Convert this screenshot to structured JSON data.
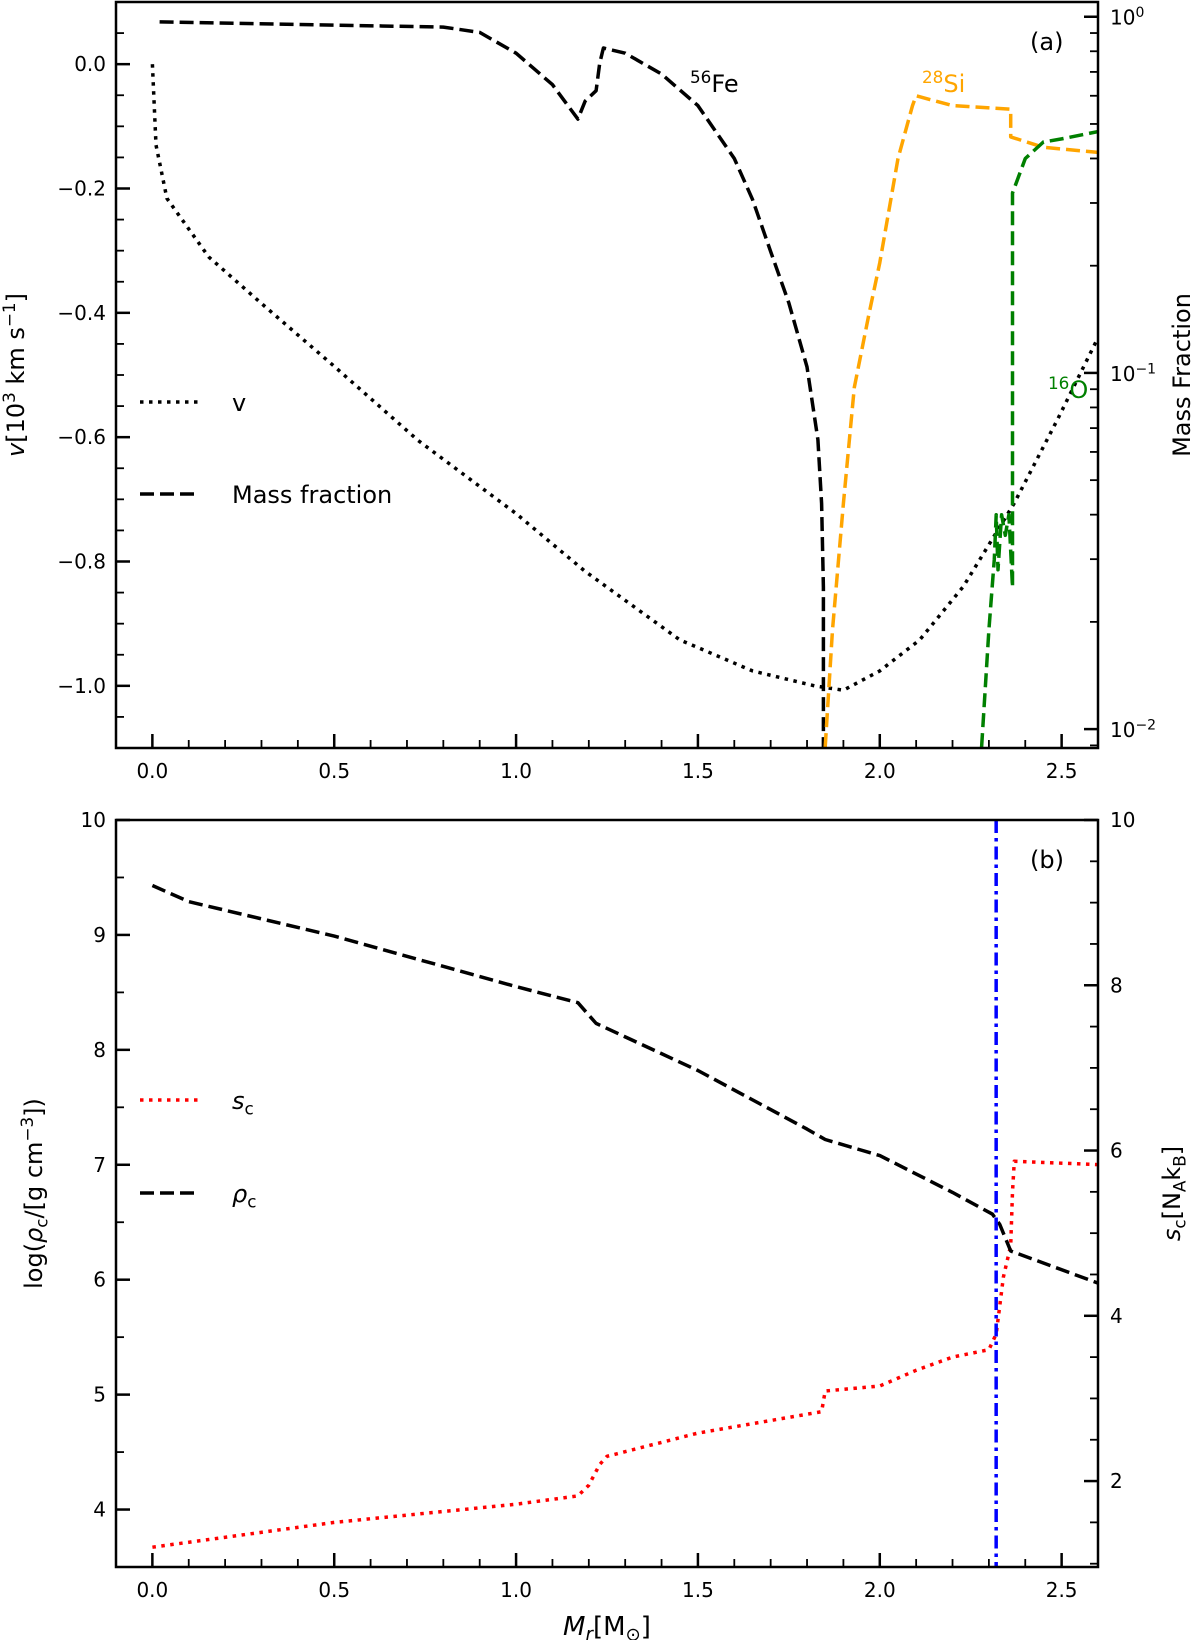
{
  "chart_data": [
    {
      "type": "line",
      "panel_label": "(a)",
      "xlim": [
        -0.1,
        2.6
      ],
      "x_ticks": [
        "0.0",
        "0.5",
        "1.0",
        "1.5",
        "2.0",
        "2.5"
      ],
      "ylim_left": [
        -1.1,
        0.1
      ],
      "y_ticks_left": [
        "0.0",
        "−0.2",
        "−0.4",
        "−0.6",
        "−0.8",
        "−1.0"
      ],
      "ylabel_left": [
        {
          "t": "v",
          "i": true
        },
        {
          "t": "[10"
        },
        {
          "t": "3",
          "sup": true
        },
        {
          "t": " km s"
        },
        {
          "t": "−1",
          "sup": true
        },
        {
          "t": "]"
        }
      ],
      "ylim_right": [
        0.00885,
        1.1
      ],
      "yscale_right": "log",
      "y_ticks_right": [
        [
          {
            "t": "10"
          },
          {
            "t": "0",
            "sup": true
          }
        ],
        [
          {
            "t": "10"
          },
          {
            "t": "−1",
            "sup": true
          }
        ],
        [
          {
            "t": "10"
          },
          {
            "t": "−2",
            "sup": true
          }
        ]
      ],
      "ylabel_right": [
        {
          "t": "Mass Fraction"
        }
      ],
      "legend": {
        "placement": "center-left",
        "entries": [
          {
            "label": "v",
            "style": "dotted",
            "color": "#000000"
          },
          {
            "label": "Mass fraction",
            "style": "dashed",
            "color": "#000000"
          }
        ]
      },
      "annotations": [
        {
          "parts": [
            {
              "t": "56",
              "sup": true
            },
            {
              "t": "Fe"
            }
          ],
          "color": "#000000"
        },
        {
          "parts": [
            {
              "t": "28",
              "sup": true
            },
            {
              "t": "Si"
            }
          ],
          "color": "#FFA500"
        },
        {
          "parts": [
            {
              "t": "16",
              "sup": true
            },
            {
              "t": "O"
            }
          ],
          "color": "#008000"
        }
      ],
      "series": [
        {
          "id": "v",
          "axis": "left",
          "style": "dotted",
          "color": "#000000",
          "points": [
            [
              0,
              0
            ],
            [
              0.01,
              -0.13
            ],
            [
              0.04,
              -0.216
            ],
            [
              0.155,
              -0.31
            ],
            [
              0.3,
              -0.385
            ],
            [
              0.5,
              -0.486
            ],
            [
              0.73,
              -0.605
            ],
            [
              1.0,
              -0.723
            ],
            [
              1.19,
              -0.816
            ],
            [
              1.45,
              -0.926
            ],
            [
              1.65,
              -0.976
            ],
            [
              1.82,
              -1.0
            ],
            [
              1.9,
              -1.007
            ],
            [
              2.0,
              -0.976
            ],
            [
              2.11,
              -0.926
            ],
            [
              2.23,
              -0.84
            ],
            [
              2.37,
              -0.706
            ],
            [
              2.49,
              -0.57
            ],
            [
              2.6,
              -0.44
            ]
          ]
        },
        {
          "id": "fe56",
          "axis": "right",
          "style": "dashed",
          "color": "#000000",
          "points": [
            [
              0.02,
              0.967
            ],
            [
              0.8,
              0.935
            ],
            [
              0.9,
              0.904
            ],
            [
              1.0,
              0.79
            ],
            [
              1.1,
              0.645
            ],
            [
              1.17,
              0.516
            ],
            [
              1.19,
              0.58
            ],
            [
              1.22,
              0.62
            ],
            [
              1.23,
              0.74
            ],
            [
              1.24,
              0.817
            ],
            [
              1.3,
              0.79
            ],
            [
              1.4,
              0.69
            ],
            [
              1.5,
              0.563
            ],
            [
              1.6,
              0.4
            ],
            [
              1.65,
              0.307
            ],
            [
              1.7,
              0.219
            ],
            [
              1.75,
              0.157
            ],
            [
              1.8,
              0.104
            ],
            [
              1.83,
              0.065
            ],
            [
              1.84,
              0.043
            ],
            [
              1.845,
              0.025
            ],
            [
              1.845,
              0.0089
            ]
          ]
        },
        {
          "id": "si28",
          "axis": "right",
          "style": "dashed",
          "color": "#FFA500",
          "points": [
            [
              1.85,
              0.0089
            ],
            [
              1.87,
              0.019
            ],
            [
              1.9,
              0.043
            ],
            [
              1.93,
              0.091
            ],
            [
              1.97,
              0.146
            ],
            [
              2.0,
              0.204
            ],
            [
              2.05,
              0.4
            ],
            [
              2.09,
              0.563
            ],
            [
              2.1,
              0.6
            ],
            [
              2.2,
              0.563
            ],
            [
              2.36,
              0.55
            ],
            [
              2.36,
              0.46
            ],
            [
              2.45,
              0.43
            ],
            [
              2.6,
              0.416
            ]
          ]
        },
        {
          "id": "o16",
          "axis": "right",
          "style": "dashed",
          "color": "#008000",
          "points": [
            [
              2.28,
              0.0089
            ],
            [
              2.3,
              0.019
            ],
            [
              2.315,
              0.03
            ],
            [
              2.32,
              0.04
            ],
            [
              2.325,
              0.028
            ],
            [
              2.335,
              0.04
            ],
            [
              2.345,
              0.035
            ],
            [
              2.355,
              0.04
            ],
            [
              2.365,
              0.025
            ],
            [
              2.365,
              0.32
            ],
            [
              2.4,
              0.4
            ],
            [
              2.45,
              0.445
            ],
            [
              2.5,
              0.454
            ],
            [
              2.6,
              0.476
            ]
          ]
        }
      ]
    },
    {
      "type": "line",
      "panel_label": "(b)",
      "xlim": [
        -0.1,
        2.6
      ],
      "x_ticks": [
        "0.0",
        "0.5",
        "1.0",
        "1.5",
        "2.0",
        "2.5"
      ],
      "xlabel": [
        {
          "t": "M",
          "i": true
        },
        {
          "t": "r",
          "i": true,
          "sub": true
        },
        {
          "t": "[M"
        },
        {
          "t": "⊙",
          "sub": true
        },
        {
          "t": "]"
        }
      ],
      "ylim_left": [
        3.5,
        10
      ],
      "y_ticks_left": [
        "4",
        "5",
        "6",
        "7",
        "8",
        "9",
        "10"
      ],
      "ylabel_left": [
        {
          "t": "log("
        },
        {
          "t": "ρ",
          "i": true
        },
        {
          "t": "c",
          "sub": true
        },
        {
          "t": "/[g cm"
        },
        {
          "t": "−3",
          "sup": true
        },
        {
          "t": "])"
        }
      ],
      "ylim_right": [
        0.96,
        10
      ],
      "y_ticks_right": [
        "2",
        "4",
        "6",
        "8",
        "10"
      ],
      "ylabel_right": [
        {
          "t": "s",
          "i": true
        },
        {
          "t": "c",
          "sub": true
        },
        {
          "t": "[N"
        },
        {
          "t": "A",
          "sub": true
        },
        {
          "t": "k"
        },
        {
          "t": "B",
          "sub": true
        },
        {
          "t": "]"
        }
      ],
      "legend": {
        "placement": "center-left",
        "entries": [
          {
            "parts": [
              {
                "t": "s",
                "i": true
              },
              {
                "t": "c",
                "sub": true
              }
            ],
            "style": "dotted",
            "color": "#FF0000"
          },
          {
            "parts": [
              {
                "t": "ρ",
                "i": true
              },
              {
                "t": "c",
                "sub": true
              }
            ],
            "style": "dashed",
            "color": "#000000"
          }
        ]
      },
      "vline": {
        "x": 2.32,
        "style": "dashdot",
        "color": "#0000FF"
      },
      "series": [
        {
          "id": "s_c",
          "axis": "right",
          "style": "dotted",
          "color": "#FF0000",
          "points": [
            [
              0,
              1.2
            ],
            [
              0.5,
              1.5
            ],
            [
              1.0,
              1.72
            ],
            [
              1.17,
              1.82
            ],
            [
              1.2,
              1.95
            ],
            [
              1.23,
              2.2
            ],
            [
              1.25,
              2.3
            ],
            [
              1.5,
              2.58
            ],
            [
              1.84,
              2.84
            ],
            [
              1.85,
              3.09
            ],
            [
              2.0,
              3.15
            ],
            [
              2.1,
              3.34
            ],
            [
              2.2,
              3.5
            ],
            [
              2.3,
              3.59
            ],
            [
              2.32,
              3.78
            ],
            [
              2.34,
              4.47
            ],
            [
              2.36,
              4.85
            ],
            [
              2.365,
              5.5
            ],
            [
              2.37,
              5.87
            ],
            [
              2.6,
              5.83
            ]
          ]
        },
        {
          "id": "rho_c",
          "axis": "left",
          "style": "dashed",
          "color": "#000000",
          "points": [
            [
              0,
              9.43
            ],
            [
              0.1,
              9.29
            ],
            [
              0.5,
              8.99
            ],
            [
              1.0,
              8.55
            ],
            [
              1.17,
              8.41
            ],
            [
              1.22,
              8.23
            ],
            [
              1.5,
              7.82
            ],
            [
              1.8,
              7.31
            ],
            [
              1.85,
              7.22
            ],
            [
              2.0,
              7.08
            ],
            [
              2.2,
              6.76
            ],
            [
              2.31,
              6.57
            ],
            [
              2.33,
              6.48
            ],
            [
              2.36,
              6.25
            ],
            [
              2.6,
              5.97
            ]
          ]
        }
      ]
    }
  ]
}
